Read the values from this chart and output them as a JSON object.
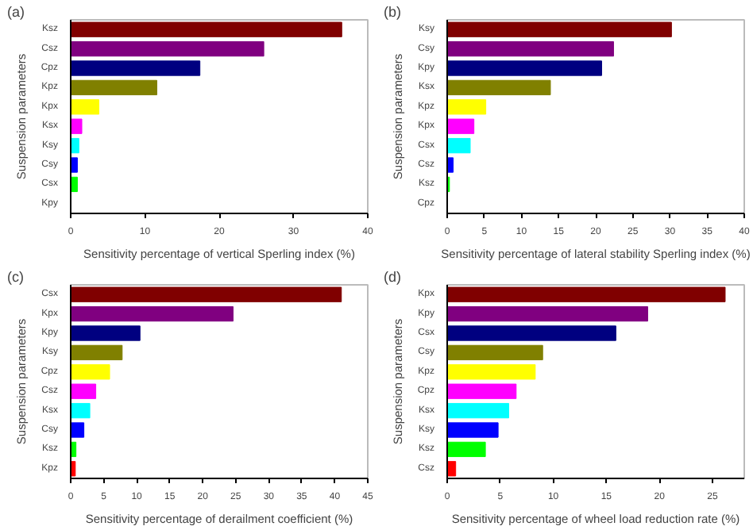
{
  "chart_data": [
    {
      "type": "bar",
      "orientation": "horizontal",
      "annotations": [
        "(a)"
      ],
      "xlabel": "Sensitivity percentage of vertical Sperling index (%)",
      "ylabel": "Suspension parameters",
      "categories": [
        "Ksz",
        "Csz",
        "Cpz",
        "Kpz",
        "Kpx",
        "Ksx",
        "Ksy",
        "Csy",
        "Csx",
        "Kpy"
      ],
      "values": [
        36.5,
        26.0,
        17.4,
        11.6,
        3.8,
        1.5,
        1.1,
        0.9,
        0.9,
        0
      ],
      "colors": [
        "#800000",
        "#800080",
        "#000080",
        "#808000",
        "#ffff00",
        "#ff00ff",
        "#00ffff",
        "#0000ff",
        "#00ff00",
        "#ff0000"
      ],
      "xlim": [
        0,
        40
      ],
      "xticks": [
        0,
        10,
        20,
        30,
        40
      ],
      "grid": false
    },
    {
      "type": "bar",
      "orientation": "horizontal",
      "annotations": [
        "(b)"
      ],
      "xlabel": "Sensitivity percentage of lateral stability Sperling index (%)",
      "ylabel": "Suspension parameters",
      "categories": [
        "Ksy",
        "Csy",
        "Kpy",
        "Ksx",
        "Kpz",
        "Kpx",
        "Csx",
        "Csz",
        "Ksz",
        "Cpz"
      ],
      "values": [
        30.2,
        22.4,
        20.8,
        13.9,
        5.2,
        3.6,
        3.1,
        0.8,
        0.3,
        0
      ],
      "colors": [
        "#800000",
        "#800080",
        "#000080",
        "#808000",
        "#ffff00",
        "#ff00ff",
        "#00ffff",
        "#0000ff",
        "#00ff00",
        "#ff0000"
      ],
      "xlim": [
        0,
        40
      ],
      "xticks": [
        0,
        5,
        10,
        15,
        20,
        25,
        30,
        35,
        40
      ],
      "grid": false
    },
    {
      "type": "bar",
      "orientation": "horizontal",
      "annotations": [
        "(c)"
      ],
      "xlabel": "Sensitivity percentage of derailment coefficient (%)",
      "ylabel": "Suspension parameters",
      "categories": [
        "Csx",
        "Kpx",
        "Kpy",
        "Ksy",
        "Cpz",
        "Csz",
        "Ksx",
        "Csy",
        "Ksz",
        "Kpz"
      ],
      "values": [
        41.0,
        24.6,
        10.5,
        7.8,
        5.9,
        3.8,
        2.9,
        2.0,
        0.8,
        0.7
      ],
      "colors": [
        "#800000",
        "#800080",
        "#000080",
        "#808000",
        "#ffff00",
        "#ff00ff",
        "#00ffff",
        "#0000ff",
        "#00ff00",
        "#ff0000"
      ],
      "xlim": [
        0,
        45
      ],
      "xticks": [
        0,
        5,
        10,
        15,
        20,
        25,
        30,
        35,
        40,
        45
      ],
      "grid": false
    },
    {
      "type": "bar",
      "orientation": "horizontal",
      "annotations": [
        "(d)"
      ],
      "xlabel": "Sensitivity percentage of wheel load reduction rate (%)",
      "ylabel": "Suspension parameters",
      "categories": [
        "Kpx",
        "Kpy",
        "Csx",
        "Csy",
        "Kpz",
        "Cpz",
        "Ksx",
        "Ksy",
        "Ksz",
        "Csz"
      ],
      "values": [
        26.2,
        18.9,
        15.9,
        9.0,
        8.3,
        6.5,
        5.8,
        4.8,
        3.6,
        0.8
      ],
      "colors": [
        "#800000",
        "#800080",
        "#000080",
        "#808000",
        "#ffff00",
        "#ff00ff",
        "#00ffff",
        "#0000ff",
        "#00ff00",
        "#ff0000"
      ],
      "xlim": [
        0,
        28
      ],
      "xticks": [
        0,
        5,
        10,
        15,
        20,
        25
      ],
      "grid": false
    }
  ]
}
